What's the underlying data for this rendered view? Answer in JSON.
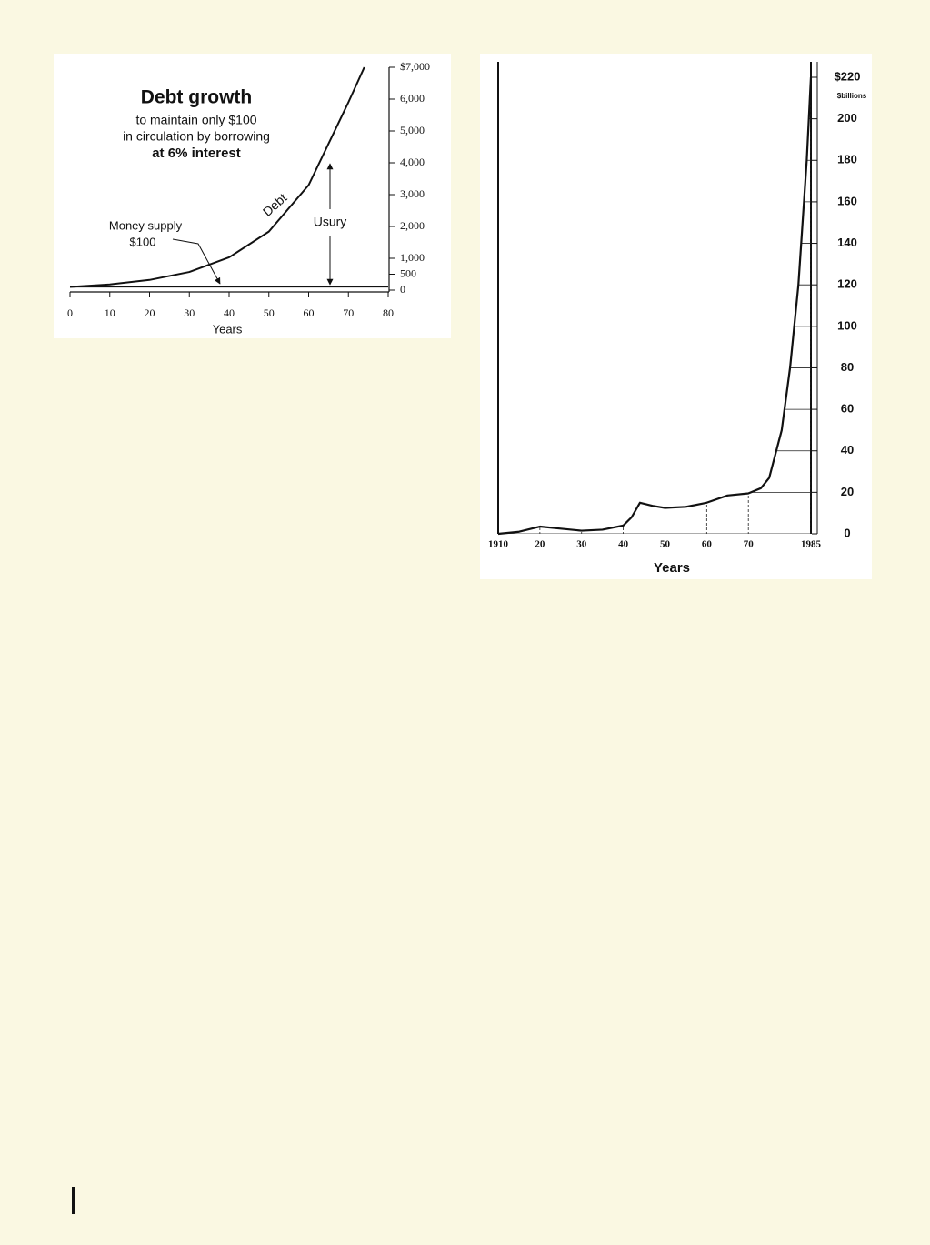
{
  "chart_data": [
    {
      "type": "line",
      "title": "Debt growth",
      "subtitle": [
        "to maintain only $100",
        "in circulation by borrowing",
        "at 6% interest"
      ],
      "annotations": [
        "Debt",
        "Money supply",
        "$100",
        "Usury"
      ],
      "xlabel": "Years",
      "x": [
        0,
        10,
        20,
        30,
        40,
        50,
        60,
        70,
        74,
        80
      ],
      "series": [
        {
          "name": "Debt",
          "color": "#111111",
          "values": [
            100,
            180,
            320,
            570,
            1030,
            1840,
            3300,
            5900,
            7000,
            null
          ]
        },
        {
          "name": "Money supply",
          "color": "#111111",
          "values": [
            100,
            100,
            100,
            100,
            100,
            100,
            100,
            100,
            100,
            100
          ]
        }
      ],
      "xlim": [
        0,
        80
      ],
      "xticks": [
        0,
        10,
        20,
        30,
        40,
        50,
        60,
        70,
        80
      ],
      "ylim": [
        0,
        7000
      ],
      "yticks": [
        0,
        500,
        {
          "value": 1000,
          "label": "1,000"
        },
        {
          "value": 2000,
          "label": "2,000"
        },
        {
          "value": 3000,
          "label": "3,000"
        },
        {
          "value": 4000,
          "label": "4,000"
        },
        {
          "value": 5000,
          "label": "5,000"
        },
        {
          "value": 6000,
          "label": "6,000"
        },
        {
          "value": 7000,
          "label": "$7,000"
        }
      ],
      "grid": false
    },
    {
      "type": "line",
      "xlabel": "Years",
      "y_unit": "$billions",
      "x": [
        1910,
        1915,
        1920,
        1925,
        1930,
        1935,
        1940,
        1942,
        1944,
        1947,
        1950,
        1955,
        1960,
        1965,
        1970,
        1973,
        1975,
        1978,
        1980,
        1982,
        1983,
        1984,
        1985
      ],
      "series": [
        {
          "color": "#111111",
          "values": [
            0,
            1,
            3.5,
            2.5,
            1.5,
            2,
            4,
            8,
            15,
            13.5,
            12.5,
            13,
            15,
            18.5,
            19.5,
            22,
            27,
            50,
            80,
            120,
            150,
            180,
            220
          ]
        }
      ],
      "xlim": [
        1910,
        1985
      ],
      "xticks": [
        1910,
        {
          "value": 1920,
          "label": "20"
        },
        {
          "value": 1930,
          "label": "30"
        },
        {
          "value": 1940,
          "label": "40"
        },
        {
          "value": 1950,
          "label": "50"
        },
        {
          "value": 1960,
          "label": "60"
        },
        {
          "value": 1970,
          "label": "70"
        },
        1985
      ],
      "ylim": [
        0,
        220
      ],
      "yticks": [
        0,
        20,
        40,
        60,
        80,
        100,
        120,
        140,
        160,
        180,
        200,
        {
          "value": 220,
          "label": "$220"
        }
      ],
      "grid": true
    }
  ]
}
